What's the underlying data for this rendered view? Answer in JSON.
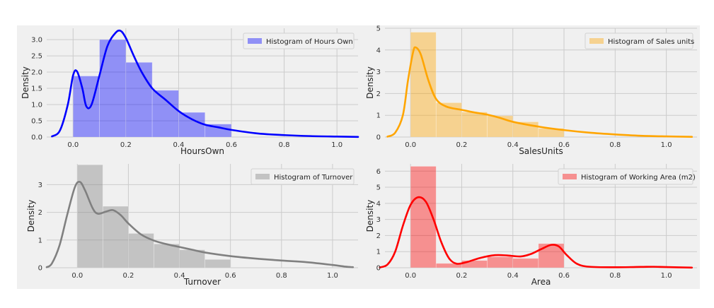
{
  "chart_data": [
    {
      "type": "bar",
      "panel": "top-left",
      "xlabel": "HoursOwn",
      "ylabel": "Density",
      "xlim": [
        -0.1,
        1.08
      ],
      "ylim": [
        0,
        3.35
      ],
      "xticks": [
        0.0,
        0.2,
        0.4,
        0.6,
        0.8,
        1.0
      ],
      "xtick_labels": [
        "0.0",
        "0.2",
        "0.4",
        "0.6",
        "0.8",
        "1.0"
      ],
      "yticks": [
        0.0,
        0.5,
        1.0,
        1.5,
        2.0,
        2.5,
        3.0
      ],
      "ytick_labels": [
        "0.0",
        "0.5",
        "1.0",
        "1.5",
        "2.0",
        "2.5",
        "3.0"
      ],
      "legend": "Histogram of Hours Own",
      "legend_position": "top-right",
      "color": "#0000ff",
      "bins": [
        [
          0.0,
          0.1,
          1.88
        ],
        [
          0.1,
          0.2,
          3.0
        ],
        [
          0.2,
          0.3,
          2.3
        ],
        [
          0.3,
          0.4,
          1.44
        ],
        [
          0.4,
          0.5,
          0.76
        ],
        [
          0.5,
          0.6,
          0.4
        ]
      ],
      "kde": [
        [
          -0.08,
          0.02
        ],
        [
          -0.05,
          0.2
        ],
        [
          -0.02,
          1.0
        ],
        [
          0.0,
          1.9
        ],
        [
          0.015,
          2.02
        ],
        [
          0.035,
          1.5
        ],
        [
          0.05,
          0.95
        ],
        [
          0.07,
          1.0
        ],
        [
          0.1,
          1.9
        ],
        [
          0.13,
          2.8
        ],
        [
          0.16,
          3.2
        ],
        [
          0.18,
          3.27
        ],
        [
          0.2,
          3.05
        ],
        [
          0.23,
          2.5
        ],
        [
          0.26,
          2.0
        ],
        [
          0.3,
          1.5
        ],
        [
          0.35,
          1.15
        ],
        [
          0.4,
          0.8
        ],
        [
          0.45,
          0.55
        ],
        [
          0.5,
          0.38
        ],
        [
          0.55,
          0.3
        ],
        [
          0.6,
          0.22
        ],
        [
          0.7,
          0.11
        ],
        [
          0.8,
          0.06
        ],
        [
          0.9,
          0.03
        ],
        [
          1.0,
          0.015
        ],
        [
          1.08,
          0.005
        ]
      ]
    },
    {
      "type": "bar",
      "panel": "top-right",
      "xlabel": "SalesUnits",
      "ylabel": "Density",
      "xlim": [
        -0.1,
        1.12
      ],
      "ylim": [
        0,
        5.0
      ],
      "xticks": [
        0.0,
        0.2,
        0.4,
        0.6,
        0.8,
        1.0
      ],
      "xtick_labels": [
        "0.0",
        "0.2",
        "0.4",
        "0.6",
        "0.8",
        "1.0"
      ],
      "yticks": [
        0,
        1,
        2,
        3,
        4,
        5
      ],
      "ytick_labels": [
        "0",
        "1",
        "2",
        "3",
        "4",
        "5"
      ],
      "legend": "Histogram of Sales units",
      "legend_position": "top-right",
      "color": "#ffa500",
      "bins": [
        [
          0.0,
          0.1,
          4.82
        ],
        [
          0.1,
          0.2,
          1.58
        ],
        [
          0.2,
          0.3,
          1.15
        ],
        [
          0.3,
          0.4,
          0.98
        ],
        [
          0.4,
          0.5,
          0.7
        ],
        [
          0.5,
          0.6,
          0.4
        ]
      ],
      "kde": [
        [
          -0.09,
          0.02
        ],
        [
          -0.06,
          0.2
        ],
        [
          -0.03,
          1.0
        ],
        [
          -0.01,
          2.6
        ],
        [
          0.01,
          3.9
        ],
        [
          0.02,
          4.12
        ],
        [
          0.04,
          3.8
        ],
        [
          0.07,
          2.6
        ],
        [
          0.1,
          1.75
        ],
        [
          0.14,
          1.4
        ],
        [
          0.2,
          1.25
        ],
        [
          0.25,
          1.13
        ],
        [
          0.3,
          1.03
        ],
        [
          0.35,
          0.88
        ],
        [
          0.4,
          0.7
        ],
        [
          0.5,
          0.48
        ],
        [
          0.6,
          0.32
        ],
        [
          0.7,
          0.2
        ],
        [
          0.8,
          0.12
        ],
        [
          0.9,
          0.06
        ],
        [
          1.0,
          0.03
        ],
        [
          1.1,
          0.01
        ]
      ]
    },
    {
      "type": "bar",
      "panel": "bottom-left",
      "xlabel": "Turnover",
      "ylabel": "Density",
      "xlim": [
        -0.12,
        1.1
      ],
      "ylim": [
        0,
        3.75
      ],
      "xticks": [
        0.0,
        0.2,
        0.4,
        0.6,
        0.8,
        1.0
      ],
      "xtick_labels": [
        "0.0",
        "0.2",
        "0.4",
        "0.6",
        "0.8",
        "1.0"
      ],
      "yticks": [
        0,
        1,
        2,
        3
      ],
      "ytick_labels": [
        "0",
        "1",
        "2",
        "3"
      ],
      "legend": "Histogram of Turnover",
      "legend_position": "top-right",
      "color": "#808080",
      "bins": [
        [
          0.0,
          0.1,
          3.72
        ],
        [
          0.1,
          0.2,
          2.22
        ],
        [
          0.2,
          0.3,
          1.24
        ],
        [
          0.3,
          0.4,
          0.86
        ],
        [
          0.4,
          0.5,
          0.65
        ],
        [
          0.5,
          0.6,
          0.3
        ]
      ],
      "kde": [
        [
          -0.12,
          0.02
        ],
        [
          -0.1,
          0.15
        ],
        [
          -0.07,
          0.8
        ],
        [
          -0.04,
          1.9
        ],
        [
          -0.01,
          2.9
        ],
        [
          0.01,
          3.1
        ],
        [
          0.03,
          2.8
        ],
        [
          0.06,
          2.15
        ],
        [
          0.08,
          1.95
        ],
        [
          0.11,
          2.02
        ],
        [
          0.14,
          2.08
        ],
        [
          0.17,
          1.9
        ],
        [
          0.2,
          1.6
        ],
        [
          0.25,
          1.2
        ],
        [
          0.3,
          0.98
        ],
        [
          0.35,
          0.85
        ],
        [
          0.4,
          0.75
        ],
        [
          0.45,
          0.65
        ],
        [
          0.5,
          0.55
        ],
        [
          0.6,
          0.42
        ],
        [
          0.7,
          0.33
        ],
        [
          0.8,
          0.26
        ],
        [
          0.9,
          0.2
        ],
        [
          1.0,
          0.1
        ],
        [
          1.05,
          0.04
        ],
        [
          1.08,
          0.02
        ]
      ]
    },
    {
      "type": "bar",
      "panel": "bottom-right",
      "xlabel": "Area",
      "ylabel": "Density",
      "xlim": [
        -0.1,
        1.12
      ],
      "ylim": [
        0,
        6.45
      ],
      "xticks": [
        0.0,
        0.2,
        0.4,
        0.6,
        0.8,
        1.0
      ],
      "xtick_labels": [
        "0.0",
        "0.2",
        "0.4",
        "0.6",
        "0.8",
        "1.0"
      ],
      "yticks": [
        0,
        1,
        2,
        3,
        4,
        5,
        6
      ],
      "ytick_labels": [
        "0",
        "1",
        "2",
        "3",
        "4",
        "5",
        "6"
      ],
      "legend": "Histogram of Working Area (m2)",
      "legend_position": "top-right",
      "color": "#ff0000",
      "bins": [
        [
          0.0,
          0.1,
          6.3
        ],
        [
          0.1,
          0.2,
          0.27
        ],
        [
          0.2,
          0.3,
          0.45
        ],
        [
          0.3,
          0.4,
          0.68
        ],
        [
          0.4,
          0.5,
          0.58
        ],
        [
          0.5,
          0.6,
          1.5
        ]
      ],
      "kde": [
        [
          -0.12,
          0.02
        ],
        [
          -0.09,
          0.2
        ],
        [
          -0.06,
          1.0
        ],
        [
          -0.03,
          2.6
        ],
        [
          0.0,
          3.9
        ],
        [
          0.03,
          4.38
        ],
        [
          0.06,
          4.1
        ],
        [
          0.09,
          3.0
        ],
        [
          0.12,
          1.6
        ],
        [
          0.15,
          0.6
        ],
        [
          0.18,
          0.25
        ],
        [
          0.22,
          0.35
        ],
        [
          0.27,
          0.6
        ],
        [
          0.33,
          0.78
        ],
        [
          0.38,
          0.76
        ],
        [
          0.43,
          0.7
        ],
        [
          0.47,
          0.85
        ],
        [
          0.51,
          1.15
        ],
        [
          0.55,
          1.42
        ],
        [
          0.58,
          1.32
        ],
        [
          0.61,
          0.8
        ],
        [
          0.65,
          0.25
        ],
        [
          0.7,
          0.06
        ],
        [
          0.8,
          0.03
        ],
        [
          0.9,
          0.05
        ],
        [
          0.95,
          0.06
        ],
        [
          1.0,
          0.04
        ],
        [
          1.1,
          0.01
        ]
      ]
    }
  ]
}
